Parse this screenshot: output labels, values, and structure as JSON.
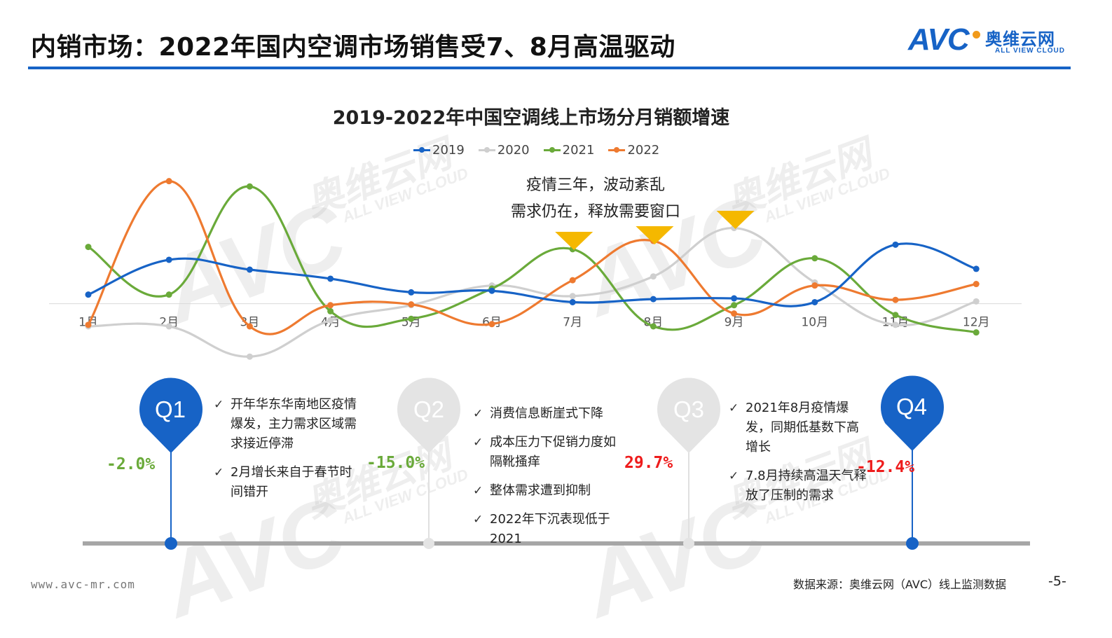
{
  "header": {
    "title": "内销市场：2022年国内空调市场销售受7、8月高温驱动",
    "logo_text": "AVC",
    "logo_cn": "奥维云网",
    "logo_en": "ALL VIEW CLOUD"
  },
  "watermark": {
    "cn": "奥维云网",
    "en": "ALL VIEW CLOUD",
    "brand": "AVC"
  },
  "chart_data": {
    "type": "line",
    "title": "2019-2022年中国空调线上市场分月销额增速",
    "categories": [
      "1月",
      "2月",
      "3月",
      "4月",
      "5月",
      "6月",
      "7月",
      "8月",
      "9月",
      "10月",
      "11月",
      "12月"
    ],
    "ylim": [
      -0.8,
      1.7
    ],
    "grid": false,
    "legend_position": "top",
    "series": [
      {
        "name": "2019",
        "color": "#1763c6",
        "values": [
          0.12,
          0.58,
          0.45,
          0.33,
          0.15,
          0.17,
          0.02,
          0.06,
          0.07,
          0.02,
          0.78,
          0.46
        ]
      },
      {
        "name": "2020",
        "color": "#cfcfcf",
        "values": [
          -0.3,
          -0.3,
          -0.7,
          -0.22,
          -0.02,
          0.24,
          0.1,
          0.36,
          1.0,
          0.28,
          -0.28,
          0.03
        ]
      },
      {
        "name": "2021",
        "color": "#6aaa3a",
        "values": [
          0.75,
          0.12,
          1.55,
          -0.1,
          -0.2,
          0.2,
          0.72,
          -0.3,
          -0.02,
          0.6,
          -0.15,
          -0.38
        ]
      },
      {
        "name": "2022",
        "color": "#ee7a30",
        "values": [
          -0.28,
          1.62,
          -0.3,
          -0.02,
          -0.01,
          -0.27,
          0.31,
          0.83,
          -0.13,
          0.24,
          0.05,
          0.26
        ]
      }
    ],
    "annotation": [
      "疫情三年，波动紊乱",
      "需求仍在，释放需要窗口"
    ],
    "highlight_months": [
      "7月",
      "8月",
      "9月"
    ]
  },
  "quarters": [
    {
      "label": "Q1",
      "active": true,
      "value": "-2.0%",
      "value_color": "#6aaa3a",
      "points": [
        "开年华东华南地区疫情爆发，主力需求区域需求接近停滞",
        "2月增长来自于春节时间错开"
      ]
    },
    {
      "label": "Q2",
      "active": false,
      "value": "-15.0%",
      "value_color": "#6aaa3a",
      "points": [
        "消费信息断崖式下降",
        "成本压力下促销力度如隔靴搔痒",
        "整体需求遭到抑制",
        "2022年下沉表现低于2021"
      ]
    },
    {
      "label": "Q3",
      "active": false,
      "value": "29.7%",
      "value_color": "#ee1c1c",
      "points": [
        "2021年8月疫情爆发，同期低基数下高增长",
        "7.8月持续高温天气释放了压制的需求"
      ]
    },
    {
      "label": "Q4",
      "active": true,
      "value": "-12.4%",
      "value_color": "#ee1c1c",
      "points": []
    }
  ],
  "footer": {
    "url": "www.avc-mr.com",
    "source": "数据来源：奥维云网（AVC）线上监测数据",
    "page": "-5-"
  },
  "colors": {
    "accent": "#1763c6",
    "triangle": "#f5b800",
    "timeline": "#a6a6a6"
  }
}
